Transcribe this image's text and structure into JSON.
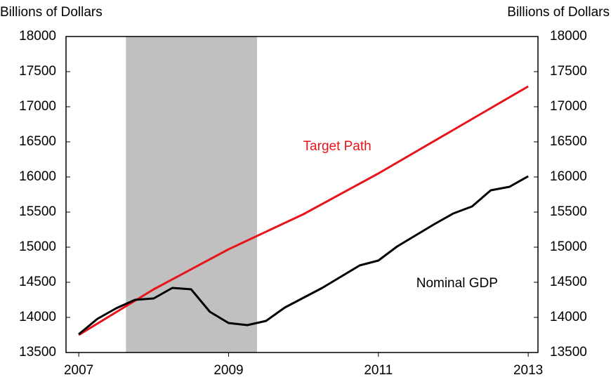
{
  "chart_data": {
    "type": "line",
    "y_axis_label": "Billions of Dollars",
    "y2_axis_label": "Billions of Dollars",
    "annotations": [
      {
        "text": "Target Path",
        "x": 2010.45,
        "y": 16430,
        "color": "#e8141b"
      },
      {
        "text": "Nominal GDP",
        "x": 2012.05,
        "y": 14480,
        "color": "#000000"
      }
    ],
    "shaded_regions": [
      {
        "x": [
          2007.63,
          2009.38
        ],
        "color": "#c0c0c0"
      }
    ],
    "series": [
      {
        "name": "Target Path",
        "color": "#e8141b",
        "x": [
          2007,
          2008,
          2009,
          2010,
          2011,
          2012,
          2013
        ],
        "values": [
          13750,
          14400,
          14970,
          15470,
          16050,
          16670,
          17290
        ]
      },
      {
        "name": "Nominal GDP",
        "color": "#000000",
        "x": [
          2007,
          2007.25,
          2007.5,
          2007.75,
          2008,
          2008.25,
          2008.5,
          2008.75,
          2009,
          2009.25,
          2009.5,
          2009.75,
          2010,
          2010.25,
          2010.5,
          2010.75,
          2011,
          2011.25,
          2011.5,
          2011.75,
          2012,
          2012.25,
          2012.5,
          2012.75,
          2013
        ],
        "values": [
          13760,
          13980,
          14130,
          14250,
          14270,
          14420,
          14400,
          14080,
          13920,
          13890,
          13950,
          14140,
          14280,
          14420,
          14580,
          14740,
          14810,
          15010,
          15170,
          15330,
          15480,
          15580,
          15810,
          15860,
          16010
        ]
      }
    ],
    "xlim": [
      2006.83,
      2013.13
    ],
    "xticks": [
      2007,
      2009,
      2011,
      2013
    ],
    "ylim": [
      13500,
      18000
    ],
    "yticks": [
      13500,
      14000,
      14500,
      15000,
      15500,
      16000,
      16500,
      17000,
      17500,
      18000
    ],
    "y2lim": [
      13500,
      18000
    ],
    "y2ticks": [
      13500,
      14000,
      14500,
      15000,
      15500,
      16000,
      16500,
      17000,
      17500,
      18000
    ]
  }
}
